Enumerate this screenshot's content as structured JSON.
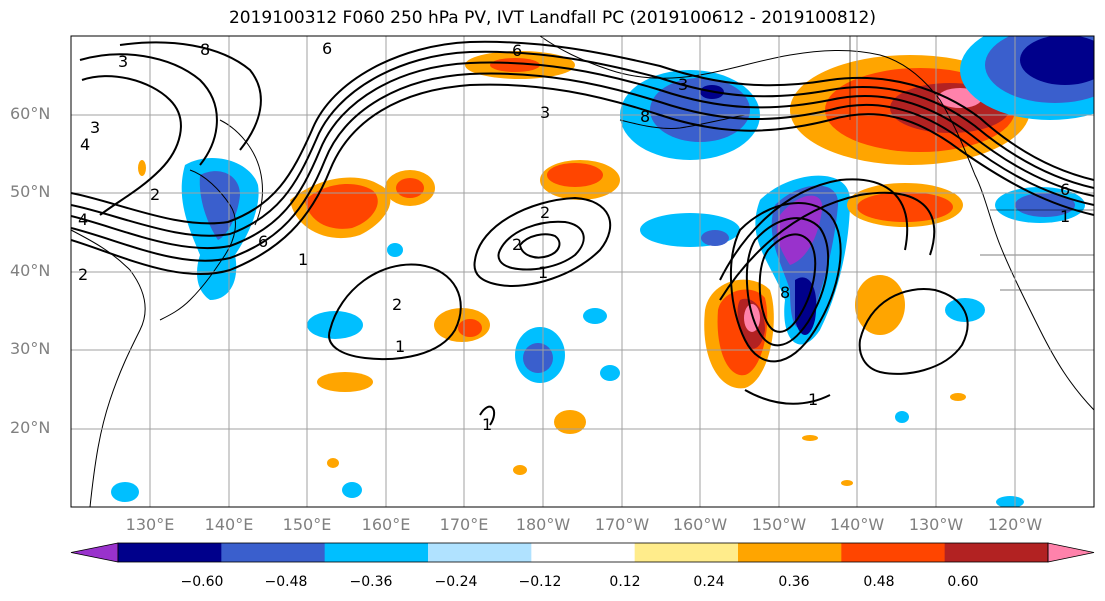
{
  "title": "2019100312 F060 250 hPa PV, IVT Landfall PC (2019100612 - 2019100812)",
  "map": {
    "lat_labels": [
      "60°N",
      "50°N",
      "40°N",
      "30°N",
      "20°N"
    ],
    "lon_labels": [
      "130°E",
      "140°E",
      "150°E",
      "160°E",
      "170°E",
      "180°W",
      "170°W",
      "160°W",
      "150°W",
      "140°W",
      "130°W",
      "120°W"
    ],
    "pv_contour_labels": [
      "8",
      "6",
      "3",
      "4",
      "2",
      "1"
    ]
  },
  "colorbar": {
    "ticks": [
      "−0.60",
      "−0.48",
      "−0.36",
      "−0.24",
      "−0.12",
      "0.12",
      "0.24",
      "0.36",
      "0.48",
      "0.60"
    ],
    "colors": [
      "#9932cc",
      "#00008b",
      "#3a5fcd",
      "#00bfff",
      "#b0e2ff",
      "#ffffff",
      "#ffec8b",
      "#ffa500",
      "#ff4500",
      "#b22222",
      "#ff82ab"
    ]
  }
}
